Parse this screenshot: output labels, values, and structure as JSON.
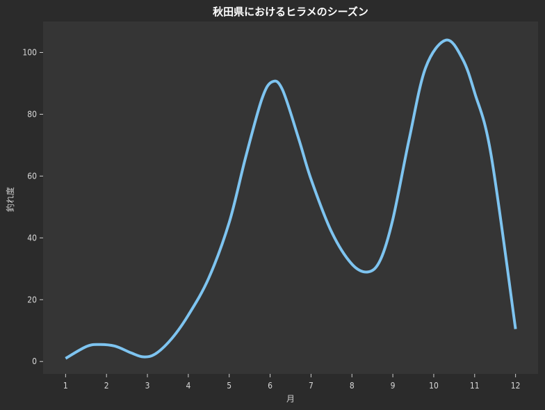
{
  "chart_data": {
    "type": "line",
    "title": "秋田県におけるヒラメのシーズン",
    "xlabel": "月",
    "ylabel": "釣れ度",
    "xlim": [
      0.45,
      12.55
    ],
    "ylim": [
      -4,
      110
    ],
    "x_ticks": [
      1,
      2,
      3,
      4,
      5,
      6,
      7,
      8,
      9,
      10,
      11,
      12
    ],
    "y_ticks": [
      0,
      20,
      40,
      60,
      80,
      100
    ],
    "grid": false,
    "series": [
      {
        "color": "#7ec4f0",
        "x": [
          1,
          1.5,
          1.8,
          2.2,
          2.6,
          2.9,
          3.2,
          3.6,
          4,
          4.5,
          5,
          5.4,
          5.8,
          6.05,
          6.3,
          6.7,
          7,
          7.5,
          8,
          8.4,
          8.7,
          9,
          9.4,
          9.8,
          10.3,
          10.7,
          11,
          11.4,
          12
        ],
        "y": [
          1,
          4.8,
          5.5,
          5,
          2.8,
          1.5,
          2.5,
          7.5,
          15,
          27,
          45,
          66,
          85,
          90.5,
          88,
          72,
          59,
          42,
          31.5,
          29,
          33,
          46,
          72,
          95,
          104,
          98,
          87,
          67,
          10.5
        ]
      }
    ]
  }
}
